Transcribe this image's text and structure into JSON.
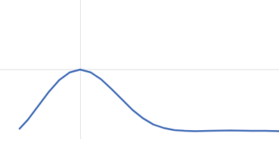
{
  "chart_data": {
    "type": "line",
    "x": [
      0.42,
      0.6,
      0.825,
      1.05,
      1.275,
      1.5,
      1.725,
      1.95,
      2.175,
      2.4,
      2.625,
      2.85,
      3.075,
      3.3,
      3.525,
      3.75,
      3.975,
      4.2,
      4.5,
      4.95,
      5.4,
      5.7,
      6.0
    ],
    "values": [
      0.165,
      0.308,
      0.528,
      0.748,
      0.935,
      1.056,
      1.1,
      1.056,
      0.946,
      0.792,
      0.627,
      0.462,
      0.33,
      0.231,
      0.176,
      0.143,
      0.132,
      0.127,
      0.132,
      0.138,
      0.132,
      0.132,
      0.127
    ],
    "color": "#3a66b3",
    "xlim": [
      0,
      6
    ],
    "ylim": [
      0,
      2.2
    ],
    "vline": 1.73,
    "hline": 1.1,
    "guide_color": "#dddddd"
  }
}
